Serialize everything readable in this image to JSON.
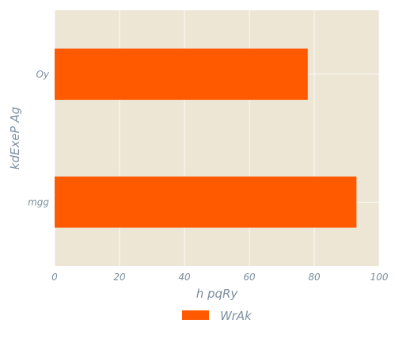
{
  "chart_data": {
    "type": "bar",
    "orientation": "horizontal",
    "categories": [
      "mgg",
      "Oy"
    ],
    "series": [
      {
        "name": "WrAk",
        "values": [
          93,
          78
        ]
      }
    ],
    "xlabel": "h pqRy",
    "ylabel": "kdExeP Ag",
    "xlim": [
      0,
      100
    ],
    "xticks": [
      0,
      20,
      40,
      60,
      80,
      100
    ],
    "grid": true,
    "legend": "bottom-center"
  },
  "colors": {
    "plot_bg": "#ede6d5",
    "bar": "#ff5a00",
    "grid": "#ffffff",
    "text": "#7d8fa0"
  }
}
